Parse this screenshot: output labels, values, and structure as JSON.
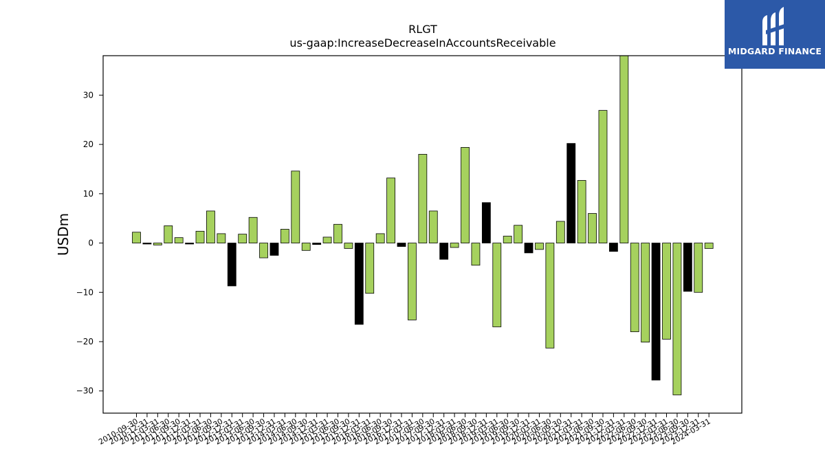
{
  "chart_data": {
    "type": "bar",
    "title": "RLGT",
    "subtitle": "us-gaap:IncreaseDecreaseInAccountsReceivable",
    "xlabel": "",
    "ylabel": "USDm",
    "ylim": [
      -34.5,
      38
    ],
    "yticks": [
      -30,
      -20,
      -10,
      0,
      10,
      20,
      30
    ],
    "grid": false,
    "colors": {
      "positive_series": "#a6d15e",
      "negative_series": "#000000",
      "edge": "#000000"
    },
    "categories": [
      "2010-09-30",
      "2010-12-31",
      "2011-03-31",
      "2011-06-30",
      "2011-09-30",
      "2011-12-31",
      "2012-03-31",
      "2012-06-30",
      "2012-09-30",
      "2012-12-31",
      "2013-03-31",
      "2013-06-30",
      "2013-09-30",
      "2013-12-31",
      "2014-03-31",
      "2014-06-30",
      "2014-09-30",
      "2014-12-31",
      "2015-03-31",
      "2015-06-30",
      "2015-09-30",
      "2015-12-31",
      "2016-03-31",
      "2016-06-30",
      "2016-09-30",
      "2016-12-31",
      "2017-03-31",
      "2017-06-30",
      "2017-09-30",
      "2017-12-31",
      "2018-03-31",
      "2018-06-30",
      "2018-09-30",
      "2018-12-31",
      "2019-03-31",
      "2019-06-30",
      "2019-09-30",
      "2019-12-31",
      "2020-03-31",
      "2020-06-30",
      "2020-09-30",
      "2020-12-31",
      "2021-03-31",
      "2021-06-30",
      "2021-09-30",
      "2021-12-31",
      "2022-03-31",
      "2022-06-30",
      "2022-09-30",
      "2022-12-31",
      "2023-03-31",
      "2023-06-30",
      "2023-09-30",
      "2023-12-31",
      "2024-03-31"
    ],
    "values": [
      2.2,
      -0.2,
      -0.4,
      3.5,
      1.1,
      -0.2,
      2.4,
      6.5,
      1.9,
      -8.7,
      1.8,
      5.2,
      -3.0,
      -2.5,
      2.8,
      14.6,
      -1.5,
      -0.3,
      1.2,
      3.8,
      -1.1,
      -16.5,
      -10.2,
      1.9,
      13.2,
      -0.7,
      -15.6,
      18.0,
      6.5,
      -3.3,
      -0.9,
      19.4,
      -4.5,
      8.2,
      -17.0,
      1.4,
      3.6,
      -2.0,
      -1.3,
      -21.3,
      4.4,
      20.2,
      12.7,
      6.0,
      26.9,
      -1.7,
      38.5,
      -18.0,
      -20.1,
      -27.8,
      -19.5,
      -30.8,
      -9.8,
      -10.0,
      -1.1
    ],
    "bar_colors": [
      "#a6d15e",
      "#000000",
      "#a6d15e",
      "#a6d15e",
      "#a6d15e",
      "#000000",
      "#a6d15e",
      "#a6d15e",
      "#a6d15e",
      "#000000",
      "#a6d15e",
      "#a6d15e",
      "#a6d15e",
      "#000000",
      "#a6d15e",
      "#a6d15e",
      "#a6d15e",
      "#000000",
      "#a6d15e",
      "#a6d15e",
      "#a6d15e",
      "#000000",
      "#a6d15e",
      "#a6d15e",
      "#a6d15e",
      "#000000",
      "#a6d15e",
      "#a6d15e",
      "#a6d15e",
      "#000000",
      "#a6d15e",
      "#a6d15e",
      "#a6d15e",
      "#000000",
      "#a6d15e",
      "#a6d15e",
      "#a6d15e",
      "#000000",
      "#a6d15e",
      "#a6d15e",
      "#a6d15e",
      "#000000",
      "#a6d15e",
      "#a6d15e",
      "#a6d15e",
      "#000000",
      "#a6d15e",
      "#a6d15e",
      "#a6d15e",
      "#000000",
      "#a6d15e",
      "#a6d15e",
      "#000000",
      "#a6d15e",
      "#a6d15e"
    ]
  },
  "logo": {
    "text": "MIDGARD FINANCE",
    "icon": "midgard-logo-icon",
    "background": "#2c59a8"
  }
}
